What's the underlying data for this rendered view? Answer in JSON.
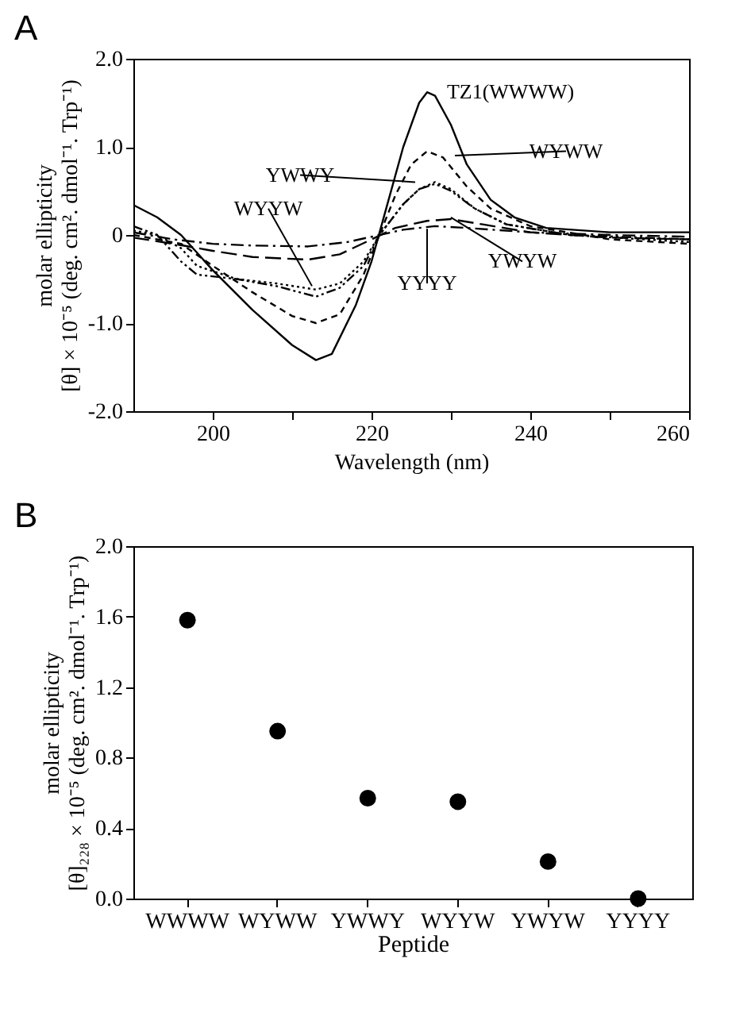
{
  "chart_data": [
    {
      "type": "line",
      "title": "A",
      "xlabel": "Wavelength (nm)",
      "ylabel": "molar ellipticity\n[θ] × 10⁻⁵ (deg. cm². dmol⁻¹. Trp⁻¹)",
      "xlim": [
        190,
        260
      ],
      "xticks": [
        200,
        {
          "value": 210,
          "label": null
        },
        220,
        {
          "value": 230,
          "label": null
        },
        240,
        {
          "value": 250,
          "label": null
        },
        260
      ],
      "ylim": [
        -2,
        2
      ],
      "yticks": [
        {
          "value": -2,
          "label": "-2.0"
        },
        {
          "value": -1,
          "label": "-1.0"
        },
        0,
        {
          "value": 1,
          "label": "1.0"
        },
        {
          "value": 2,
          "label": "2.0"
        }
      ],
      "grid": false,
      "marker": "none",
      "series": [
        {
          "color": "#000000",
          "line_style": "solid",
          "x": [
            190,
            193,
            196,
            200,
            205,
            210,
            213,
            215,
            218,
            220,
            222,
            224,
            226,
            227,
            228,
            230,
            232,
            235,
            238,
            242,
            250,
            260
          ],
          "values": [
            0.34,
            0.2,
            0.0,
            -0.4,
            -0.85,
            -1.25,
            -1.42,
            -1.35,
            -0.8,
            -0.3,
            0.35,
            1.0,
            1.5,
            1.62,
            1.58,
            1.25,
            0.8,
            0.4,
            0.2,
            0.08,
            0.03,
            0.03
          ]
        },
        {
          "color": "#000000",
          "line_style": "dashed",
          "x": [
            190,
            196,
            200,
            205,
            210,
            213,
            216,
            219,
            221,
            223,
            225,
            227,
            229,
            232,
            235,
            240,
            250,
            260
          ],
          "values": [
            0.0,
            -0.1,
            -0.35,
            -0.65,
            -0.92,
            -1.0,
            -0.9,
            -0.45,
            0.0,
            0.45,
            0.8,
            0.95,
            0.88,
            0.55,
            0.3,
            0.1,
            -0.05,
            -0.1
          ]
        },
        {
          "color": "#000000",
          "line_style": "dashdotdot",
          "x": [
            190,
            193,
            196,
            198,
            203,
            208,
            213,
            216,
            219,
            221,
            224,
            226,
            228,
            230,
            233,
            237,
            245,
            260
          ],
          "values": [
            0.1,
            0.0,
            -0.3,
            -0.45,
            -0.5,
            -0.58,
            -0.7,
            -0.6,
            -0.35,
            0.0,
            0.35,
            0.52,
            0.58,
            0.5,
            0.3,
            0.12,
            0.0,
            -0.05
          ]
        },
        {
          "color": "#000000",
          "line_style": "dotted",
          "x": [
            190,
            193,
            196,
            198,
            203,
            208,
            213,
            216,
            219,
            221,
            224,
            226,
            228,
            230,
            233,
            237,
            245,
            260
          ],
          "values": [
            0.05,
            0.0,
            -0.15,
            -0.35,
            -0.5,
            -0.55,
            -0.62,
            -0.55,
            -0.3,
            0.0,
            0.35,
            0.52,
            0.6,
            0.52,
            0.3,
            0.12,
            0.0,
            -0.08
          ]
        },
        {
          "color": "#000000",
          "line_style": "longdash",
          "x": [
            190,
            195,
            200,
            205,
            212,
            216,
            220,
            223,
            227,
            230,
            234,
            240,
            250,
            260
          ],
          "values": [
            -0.03,
            -0.1,
            -0.18,
            -0.25,
            -0.28,
            -0.22,
            -0.05,
            0.08,
            0.16,
            0.18,
            0.12,
            0.03,
            -0.03,
            -0.05
          ]
        },
        {
          "color": "#000000",
          "line_style": "dashdot",
          "x": [
            190,
            195,
            200,
            205,
            212,
            217,
            220,
            224,
            228,
            232,
            240,
            250,
            260
          ],
          "values": [
            0.03,
            -0.05,
            -0.1,
            -0.12,
            -0.13,
            -0.08,
            -0.02,
            0.06,
            0.1,
            0.08,
            0.03,
            0.0,
            -0.02
          ]
        }
      ],
      "annotations": [
        {
          "text": "TZ1(WWWW)",
          "x": 227,
          "y": 1.62
        },
        {
          "text": "WYWW",
          "x": 230.5,
          "y": 0.9
        },
        {
          "text": "YWWY",
          "x": 225.5,
          "y": 0.6
        },
        {
          "text": "WYYW",
          "x": 212.5,
          "y": -0.58
        },
        {
          "text": "YWYW",
          "x": 230,
          "y": 0.2
        },
        {
          "text": "YYYY",
          "x": 227,
          "y": 0.07
        }
      ]
    },
    {
      "type": "scatter",
      "title": "B",
      "xlabel": "Peptide",
      "ylabel": "molar ellipticity\n[θ]₂₂₈ × 10⁻⁵ (deg. cm². dmol⁻¹. Trp⁻¹)",
      "categories": [
        "WWWW",
        "WYWW",
        "YWWY",
        "WYYW",
        "YWYW",
        "YYYY"
      ],
      "values": [
        1.58,
        0.95,
        0.57,
        0.55,
        0.21,
        0.0
      ],
      "errors": [
        null,
        null,
        null,
        null,
        null,
        0.03
      ],
      "color": "#000000",
      "marker": "circle",
      "grid": false,
      "ylim": [
        0,
        2
      ],
      "yticks": [
        {
          "value": 0,
          "label": "0.0"
        },
        {
          "value": 0.4,
          "label": "0.4"
        },
        {
          "value": 0.8,
          "label": "0.8"
        },
        {
          "value": 1.2,
          "label": "1.2"
        },
        {
          "value": 1.6,
          "label": "1.6"
        },
        {
          "value": 2,
          "label": "2.0"
        }
      ]
    }
  ]
}
